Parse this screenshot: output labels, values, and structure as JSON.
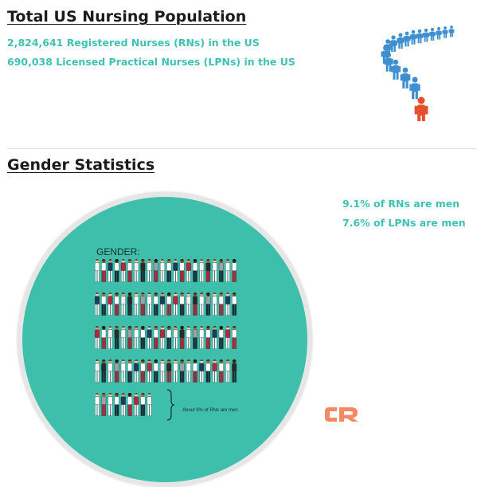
{
  "population": {
    "title": "Total US Nursing Population",
    "rn_line": "2,824,641 Registered Nurses (RNs) in the US",
    "lpn_line": "690,038 Licensed Practical Nurses (LPNs) in the US"
  },
  "gender": {
    "title": "Gender Statistics",
    "rn_men": "9.1% of RNs are men",
    "lpn_men": "7.6% of LPNs are men",
    "graphic": {
      "label": "GENDER:",
      "note": "About 9% of RNs are men"
    }
  },
  "icons": {
    "people_line": "line-of-people-icon",
    "logo": "cr-logo-icon"
  },
  "colors": {
    "teal": "#3fc2b3",
    "circle_teal": "#3dbfac",
    "people_blue": "#3e8fd0",
    "people_red": "#e4502d",
    "logo_orange": "#f38a63"
  }
}
